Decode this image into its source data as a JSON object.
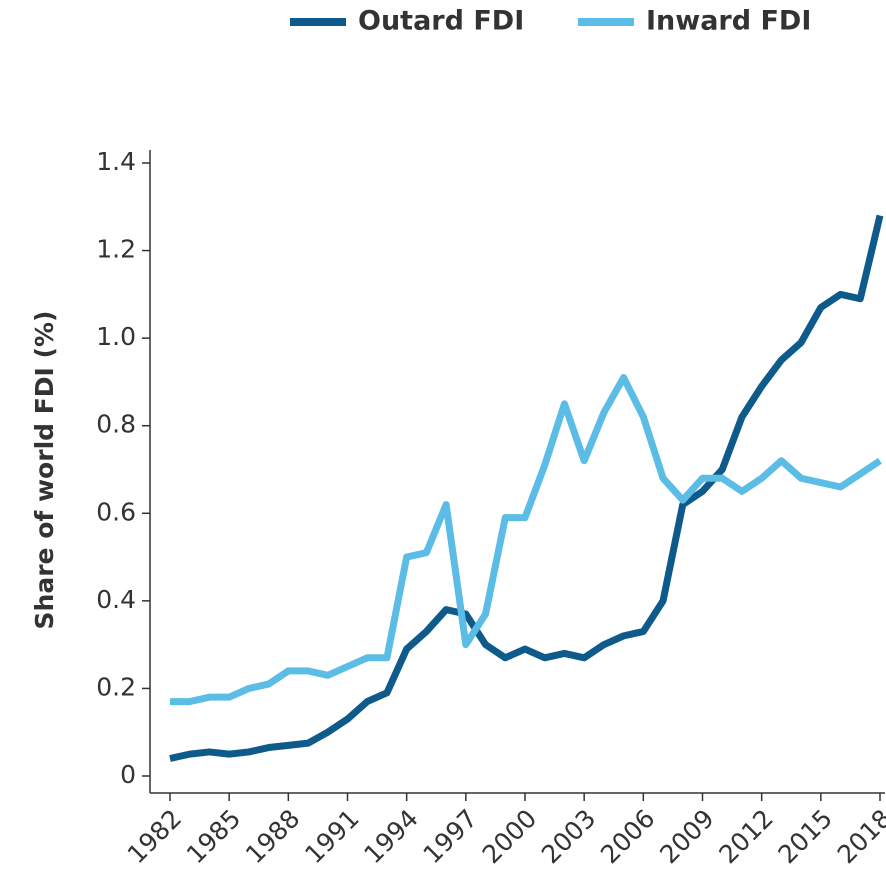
{
  "chart_data": {
    "type": "line",
    "y_label": "Share of world FDI (%)",
    "x": [
      1982,
      1983,
      1984,
      1985,
      1986,
      1987,
      1988,
      1989,
      1990,
      1991,
      1992,
      1993,
      1994,
      1995,
      1996,
      1997,
      1998,
      1999,
      2000,
      2001,
      2002,
      2003,
      2004,
      2005,
      2006,
      2007,
      2008,
      2009,
      2010,
      2011,
      2012,
      2013,
      2014,
      2015,
      2016,
      2017,
      2018
    ],
    "series": [
      {
        "name": "Outard FDI",
        "color": "#0e5a8a",
        "values": [
          0.04,
          0.05,
          0.055,
          0.05,
          0.055,
          0.065,
          0.07,
          0.075,
          0.1,
          0.13,
          0.17,
          0.19,
          0.29,
          0.33,
          0.38,
          0.37,
          0.3,
          0.27,
          0.29,
          0.27,
          0.28,
          0.27,
          0.3,
          0.32,
          0.33,
          0.4,
          0.62,
          0.65,
          0.7,
          0.82,
          0.89,
          0.95,
          0.99,
          1.07,
          1.1,
          1.09,
          1.28
        ]
      },
      {
        "name": "Inward FDI",
        "color": "#5bbde6",
        "values": [
          0.17,
          0.17,
          0.18,
          0.18,
          0.2,
          0.21,
          0.24,
          0.24,
          0.23,
          0.25,
          0.27,
          0.27,
          0.5,
          0.51,
          0.62,
          0.3,
          0.37,
          0.59,
          0.59,
          0.71,
          0.85,
          0.72,
          0.83,
          0.91,
          0.82,
          0.68,
          0.63,
          0.68,
          0.68,
          0.65,
          0.68,
          0.72,
          0.68,
          0.67,
          0.66,
          0.69,
          0.72
        ]
      }
    ],
    "xlim": [
      1982,
      2018
    ],
    "xticks": [
      1982,
      1985,
      1988,
      1991,
      1994,
      1997,
      2000,
      2003,
      2006,
      2009,
      2012,
      2015,
      2018
    ],
    "ylim": [
      0,
      1.4
    ],
    "yticks": [
      0,
      0.2,
      0.4,
      0.6,
      0.8,
      {
        "value": 1,
        "label": "1.0"
      },
      1.2,
      1.4
    ],
    "legend": "top-right"
  }
}
